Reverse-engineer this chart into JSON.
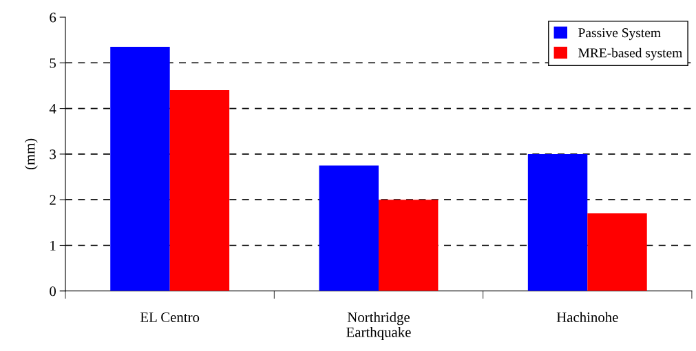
{
  "chart_data": {
    "type": "bar",
    "xlabel": "Earthquake",
    "ylabel": "(mm)",
    "categories": [
      "EL Centro",
      "Northridge",
      "Hachinohe"
    ],
    "series": [
      {
        "name": "Passive System",
        "color": "#0000ff",
        "values": [
          5.35,
          2.75,
          3.0
        ]
      },
      {
        "name": "MRE-based system",
        "color": "#ff0000",
        "values": [
          4.4,
          2.0,
          1.7
        ]
      }
    ],
    "ylim": [
      0,
      6
    ],
    "yticks": [
      0,
      1,
      2,
      3,
      4,
      5,
      6
    ],
    "grid": "y",
    "legend": "top right"
  }
}
